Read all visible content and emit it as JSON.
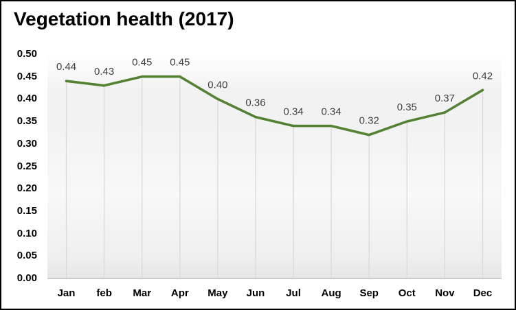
{
  "chart_data": {
    "type": "line",
    "title": "Vegetation health (2017)",
    "categories": [
      "Jan",
      "feb",
      "Mar",
      "Apr",
      "May",
      "Jun",
      "Jul",
      "Aug",
      "Sep",
      "Oct",
      "Nov",
      "Dec"
    ],
    "values": [
      0.44,
      0.43,
      0.45,
      0.45,
      0.4,
      0.36,
      0.34,
      0.34,
      0.32,
      0.35,
      0.37,
      0.42
    ],
    "data_labels": [
      "0.44",
      "0.43",
      "0.45",
      "0.45",
      "0.40",
      "0.36",
      "0.34",
      "0.34",
      "0.32",
      "0.35",
      "0.37",
      "0.42"
    ],
    "y_ticks": [
      "0.00",
      "0.05",
      "0.10",
      "0.15",
      "0.20",
      "0.25",
      "0.30",
      "0.35",
      "0.40",
      "0.45",
      "0.50"
    ],
    "ylim": [
      0,
      0.5
    ],
    "y_tick_step": 0.05,
    "xlabel": "",
    "ylabel": "",
    "legend": "none",
    "grid": "vertical-drop-lines-only",
    "colors": {
      "line": "#548235",
      "data_label": "#3f3f3f",
      "drop_line": "#d9d9d9",
      "axis_line": "#cccccc",
      "tick_label": "#000000",
      "title": "#000000"
    }
  }
}
